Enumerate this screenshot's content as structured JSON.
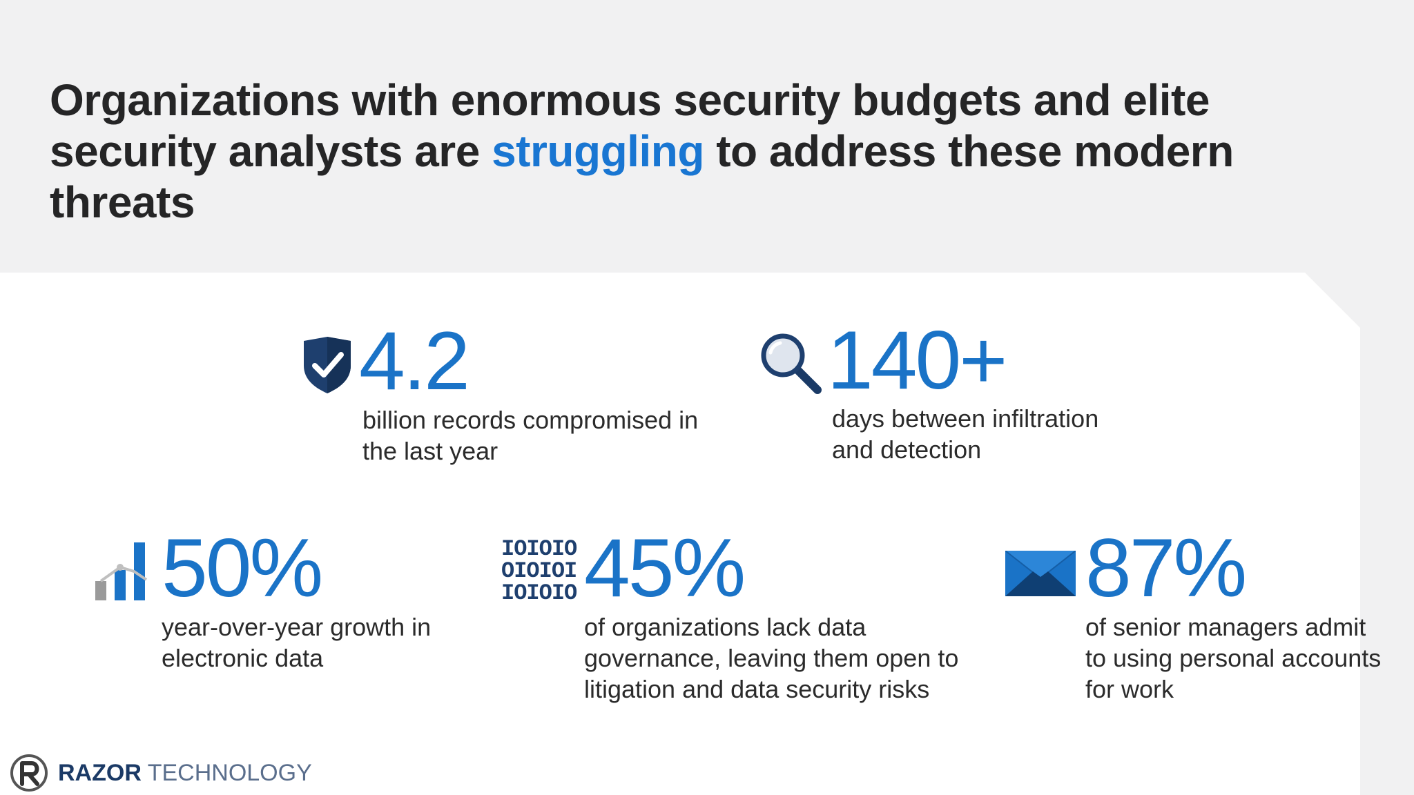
{
  "header": {
    "headline_part1": "Organizations with enormous security budgets and elite security analysts are ",
    "headline_accent": "struggling",
    "headline_part2": " to address these modern threats"
  },
  "stats": [
    {
      "icon": "shield-check-icon",
      "value": "4.2",
      "description": "billion records compromised in the last year"
    },
    {
      "icon": "magnifier-icon",
      "value": "140+",
      "description": "days between infiltration and detection"
    },
    {
      "icon": "bar-chart-icon",
      "value": "50%",
      "description": "year-over-year growth in electronic data"
    },
    {
      "icon": "binary-data-icon",
      "value": "45%",
      "description": "of organizations lack data governance, leaving them open to litigation and data security risks",
      "binary_rows": [
        "IOIOIO",
        "OIOIOI",
        "IOIOIO"
      ]
    },
    {
      "icon": "envelope-icon",
      "value": "87%",
      "description": "of senior managers admit to using personal accounts for work"
    }
  ],
  "footer": {
    "brand_bold": "RAZOR",
    "brand_light": " TECHNOLOGY"
  },
  "colors": {
    "accent": "#1976d2",
    "stat_blue": "#1a73c7",
    "header_bg": "#f1f1f2",
    "navy": "#1f3e6b"
  }
}
